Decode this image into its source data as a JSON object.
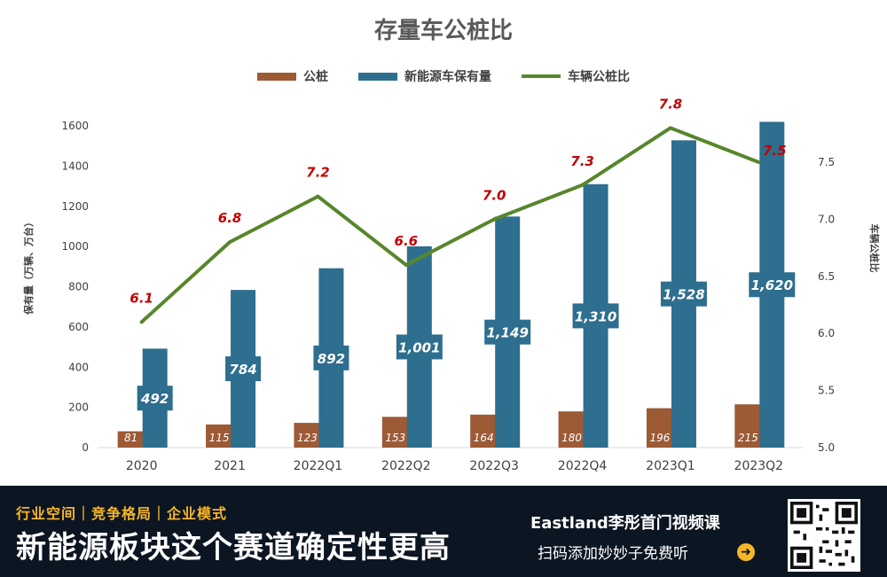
{
  "chart_data": {
    "type": "bar",
    "title": "存量车公桩比",
    "categories": [
      "2020",
      "2021",
      "2022Q1",
      "2022Q2",
      "2022Q3",
      "2022Q4",
      "2023Q1",
      "2023Q2"
    ],
    "series": [
      {
        "name": "公桩",
        "type": "bar",
        "axis": "left",
        "color": "#9c5a35",
        "values": [
          81,
          115,
          123,
          153,
          164,
          180,
          196,
          215
        ]
      },
      {
        "name": "新能源车保有量",
        "type": "bar",
        "axis": "left",
        "color": "#2e6e8e",
        "values": [
          492,
          784,
          892,
          1001,
          1149,
          1310,
          1528,
          1620
        ],
        "value_labels": [
          "492",
          "784",
          "892",
          "1,001",
          "1,149",
          "1,310",
          "1,528",
          "1,620"
        ]
      },
      {
        "name": "车辆公桩比",
        "type": "line",
        "axis": "right",
        "color": "#57862c",
        "values": [
          6.1,
          6.8,
          7.2,
          6.6,
          7.0,
          7.3,
          7.8,
          7.5
        ],
        "value_labels": [
          "6.1",
          "6.8",
          "7.2",
          "6.6",
          "7.0",
          "7.3",
          "7.8",
          "7.5"
        ],
        "label_color": "#c00000"
      }
    ],
    "ylabel": "保有量（万辆、万台）",
    "y2label": "车辆公桩比",
    "ylim": [
      0,
      1600
    ],
    "yticks": [
      0,
      200,
      400,
      600,
      800,
      1000,
      1200,
      1400,
      1600
    ],
    "y2lim": [
      5.0,
      7.5
    ],
    "y2ticks": [
      "5.0",
      "5.5",
      "6.0",
      "6.5",
      "7.0",
      "7.5"
    ],
    "grid": false,
    "legend": "top-center"
  },
  "banner": {
    "tags": "行业空间｜竞争格局｜企业模式",
    "headline": "新能源板块这个赛道确定性更高",
    "course_title": "Eastland李彤首门视频课",
    "course_subtitle": "扫码添加妙妙子免费听",
    "arrow_icon": "arrow-right-circle-icon",
    "qr_icon": "qr-code-icon",
    "accent_color": "#f5b62a",
    "background_color": "#0c1522"
  }
}
